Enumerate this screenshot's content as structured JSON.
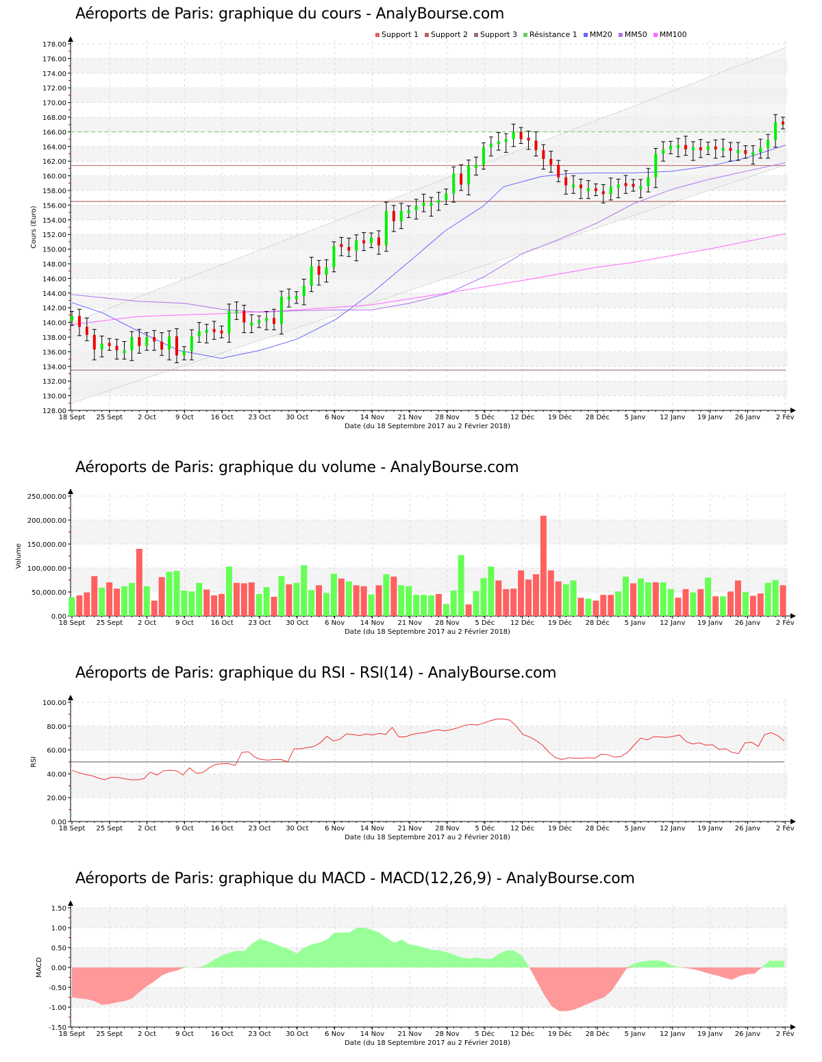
{
  "titles": {
    "price": "Aéroports de Paris: graphique du cours - AnalyBourse.com",
    "volume": "Aéroports de Paris: graphique du volume - AnalyBourse.com",
    "rsi": "Aéroports de Paris: graphique du RSI - RSI(14) - AnalyBourse.com",
    "macd": "Aéroports de Paris: graphique du MACD - MACD(12,26,9) - AnalyBourse.com"
  },
  "legend": [
    {
      "label": "Support 1",
      "color": "#e06060"
    },
    {
      "label": "Support 2",
      "color": "#c06060"
    },
    {
      "label": "Support 3",
      "color": "#a07070"
    },
    {
      "label": "Résistance 1",
      "color": "#60d060"
    },
    {
      "label": "MM20",
      "color": "#6666ff"
    },
    {
      "label": "MM50",
      "color": "#b070f0"
    },
    {
      "label": "MM100",
      "color": "#ff66ff"
    }
  ],
  "x_ticks": [
    "18 Sept",
    "25 Sept",
    "2 Oct",
    "9 Oct",
    "16 Oct",
    "23 Oct",
    "30 Oct",
    "6 Nov",
    "14 Nov",
    "21 Nov",
    "28 Nov",
    "5 Déc",
    "12 Déc",
    "19 Déc",
    "28 Déc",
    "5 Janv",
    "12 Janv",
    "19 Janv",
    "26 Janv",
    "2 Fév"
  ],
  "x_label": "Date (du 18 Septembre 2017 au 2 Février 2018)",
  "colors": {
    "up": "#00ee00",
    "down": "#ee0000",
    "vol_up": "#66ff55",
    "vol_down": "#ff6060",
    "macd_pos": "#99ff99",
    "macd_neg": "#ff9999",
    "rsi": "#ee3333"
  },
  "chart_data": [
    {
      "type": "candlestick",
      "title": "Aéroports de Paris: graphique du cours - AnalyBourse.com",
      "xlabel": "Date (du 18 Septembre 2017 au 2 Février 2018)",
      "ylabel": "Cours (Euro)",
      "ylim": [
        128,
        178
      ],
      "y_ticks": [
        "128.00",
        "130.00",
        "132.00",
        "134.00",
        "136.00",
        "138.00",
        "140.00",
        "142.00",
        "144.00",
        "146.00",
        "148.00",
        "150.00",
        "152.00",
        "154.00",
        "156.00",
        "158.00",
        "160.00",
        "162.00",
        "164.00",
        "166.00",
        "168.00",
        "170.00",
        "172.00",
        "174.00",
        "176.00",
        "178.00"
      ],
      "levels": {
        "support_1": 161.4,
        "support_2": 156.5,
        "support_3": 133.5,
        "resistance_1": 166.0
      },
      "ohlc": [
        [
          140,
          141.7,
          140,
          141
        ],
        [
          140.9,
          141.4,
          139.4,
          139.4
        ],
        [
          138.9,
          139.8,
          137.7,
          138.2
        ],
        [
          139.1,
          139.1,
          135.6,
          136.4
        ],
        [
          136.4,
          137.8,
          136.4,
          137.2
        ],
        [
          137,
          137.9,
          136.6,
          136.6
        ],
        [
          136.6,
          137.2,
          135.9,
          136.1
        ],
        [
          136.3,
          136.7,
          134.8,
          136.2
        ],
        [
          136.2,
          138,
          135.5,
          138
        ],
        [
          137.9,
          139,
          136.4,
          136.8
        ],
        [
          136.9,
          138.8,
          136.8,
          138
        ],
        [
          137.9,
          138.1,
          136.8,
          137.4
        ],
        [
          137.3,
          137.3,
          135.6,
          136.3
        ],
        [
          136.3,
          138.1,
          135.3,
          138.1
        ],
        [
          134.7,
          138.1,
          133.5,
          136.2
        ],
        [
          135.9,
          137,
          135.9,
          137
        ],
        [
          137.2,
          138.6,
          136.4,
          138.6
        ],
        [
          138.5,
          139,
          138.3,
          138.9
        ],
        [
          139,
          139.4,
          138.7,
          139.1
        ],
        [
          139.1,
          139.3,
          138.1,
          138.5
        ],
        [
          138.9,
          139.3,
          137.9,
          138.1
        ],
        [
          139.8,
          142,
          139.8,
          141.7
        ],
        [
          141.7,
          141.8,
          140.5,
          141.5
        ],
        [
          141.7,
          141.7,
          139.4,
          139.9
        ],
        [
          140.4,
          140.9,
          139.9,
          139.9
        ],
        [
          140.1,
          140.9,
          139.4,
          140.3
        ],
        [
          140.3,
          140.9,
          140.1,
          140.6
        ],
        [
          140.3,
          140.4,
          139.5,
          139.5
        ],
        [
          139.5,
          143.5,
          139.5,
          143.5
        ],
        [
          143.9,
          144.5,
          143.3,
          143.3
        ],
        [
          142.9,
          143.8,
          142.6,
          143.7
        ],
        [
          144.1,
          145,
          143.1,
          145
        ],
        [
          145.1,
          147.7,
          145.1,
          147.7
        ],
        [
          147.5,
          148.4,
          146.5,
          146.5
        ],
        [
          146.6,
          147.6,
          145.6,
          147.6
        ],
        [
          147,
          150.4,
          147,
          150.4
        ],
        [
          150.6,
          150.9,
          150.0,
          150.1
        ],
        [
          150.1,
          150.3,
          148.5,
          150.0
        ],
        [
          151.9,
          153.3,
          150.2,
          151.2
        ],
        [
          150.9,
          151.6,
          149.9,
          150.4
        ],
        [
          150.8,
          152,
          151.0,
          151.9
        ],
        [
          152.2,
          152.2,
          150.1,
          150.6
        ],
        [
          151.7,
          155.4,
          151.7,
          155.4
        ],
        [
          155.6,
          155.6,
          151.5,
          153.8
        ],
        [
          152.5,
          155.3,
          151.2,
          155.2
        ],
        [
          154.1,
          155.7,
          154.1,
          155.3
        ],
        [
          155.2,
          156.2,
          154.3,
          155.9
        ],
        [
          154.8,
          156.7,
          153.4,
          156.5
        ],
        [
          156.4,
          156.6,
          154.9,
          156.3
        ],
        [
          156.1,
          158.5,
          155.5,
          156.9
        ],
        [
          158.6,
          159.5,
          158.6,
          157.6
        ],
        [
          158.6,
          160.3,
          158.6,
          160.3
        ],
        [
          160.1,
          160.6,
          159.1,
          158.3
        ],
        [
          161.9,
          162.2,
          161.8,
          161.4
        ],
        [
          160.6,
          163.9,
          160.6,
          161.4
        ],
        [
          163,
          163.9,
          161.6,
          163.9
        ],
        [
          164.4,
          165.1,
          163.7,
          164.4
        ],
        [
          165.2,
          165.2,
          163.1,
          164.6
        ],
        [
          164.9,
          165.5,
          163.9,
          164.9
        ],
        [
          165.2,
          166,
          162.8,
          166
        ]
      ],
      "note": "ohlc is [open, high, low, close] estimated per trading session; last values approximate the visible candles"
    },
    {
      "type": "bar",
      "title": "Aéroports de Paris: graphique du volume - AnalyBourse.com",
      "ylabel": "Volume",
      "ylim": [
        0,
        250000
      ],
      "y_ticks": [
        "0.00",
        "50,000.00",
        "100,000.00",
        "150,000.00",
        "200,000.00",
        "250,000.00"
      ],
      "values": [
        39000,
        43000,
        49000,
        83000,
        59000,
        70000,
        57000,
        62000,
        69000,
        140000,
        62000,
        32000,
        81000,
        92000,
        94000,
        53000,
        51000,
        69000,
        55000,
        43000,
        46000,
        103000,
        69000,
        68000,
        70000,
        46000,
        60000,
        40000,
        83000,
        66000,
        69000,
        106000,
        54000,
        64000,
        48000,
        88000,
        78000,
        72000,
        64000,
        62000,
        45000,
        64000,
        87000,
        82000,
        64000,
        62000,
        44000,
        44000,
        43000,
        46000,
        25000,
        53000,
        127000,
        24000,
        52000,
        79000,
        103000,
        74000,
        56000,
        57000,
        95000,
        76000,
        87000,
        209000,
        95000,
        72000,
        66000,
        74000,
        38000,
        36000,
        32000,
        44000,
        44000,
        51000,
        82000,
        68000,
        78000,
        70000,
        70000,
        70000,
        56000,
        38000,
        56000,
        49000,
        56000,
        80000,
        41000,
        41000,
        51000,
        74000,
        50000,
        42000,
        47000,
        69000,
        75000,
        64000
      ],
      "up": [
        1,
        0,
        0,
        0,
        1,
        0,
        0,
        1,
        1,
        0,
        1,
        0,
        0,
        1,
        1,
        1,
        1,
        1,
        0,
        0,
        0,
        1,
        0,
        0,
        0,
        1,
        1,
        0,
        1,
        0,
        1,
        1,
        1,
        0,
        1,
        1,
        0,
        1,
        0,
        0,
        1,
        0,
        1,
        0,
        1,
        1,
        1,
        1,
        1,
        0,
        1,
        1,
        1,
        0,
        1,
        1,
        1,
        0,
        0,
        0,
        0,
        0,
        0,
        0,
        0,
        0,
        1,
        1,
        0,
        1,
        0,
        0,
        0,
        1,
        1,
        0,
        1,
        1,
        0,
        1,
        1,
        0,
        0,
        1,
        0,
        1,
        0,
        1,
        0,
        0,
        1,
        0,
        0,
        1,
        1,
        0
      ]
    },
    {
      "type": "line",
      "title": "Aéroports de Paris: graphique du RSI - RSI(14) - AnalyBourse.com",
      "ylabel": "RSI",
      "ylim": [
        0,
        100
      ],
      "y_ticks": [
        "0.00",
        "20.00",
        "40.00",
        "60.00",
        "80.00",
        "100.00"
      ],
      "reference_line": 50,
      "values": [
        43,
        41,
        39.5,
        38.5,
        36.5,
        35,
        37,
        37,
        36,
        35,
        35,
        36,
        41.5,
        39,
        42.5,
        43,
        42.5,
        39,
        45,
        40.5,
        41,
        45,
        48,
        48.5,
        48.5,
        47,
        58,
        58.5,
        54,
        52,
        51.5,
        52,
        52,
        50,
        61,
        61,
        62,
        63,
        66,
        71.5,
        67.5,
        69,
        73.5,
        73,
        72,
        73.5,
        72.5,
        74,
        73,
        79,
        71,
        71,
        73,
        74,
        74.5,
        76,
        77,
        76,
        77,
        78.5,
        80.5,
        81.5,
        81,
        82.5,
        84.5,
        86,
        86,
        85,
        80,
        73,
        71,
        68,
        64,
        58,
        53.5,
        52,
        53.5,
        53,
        53,
        53.5,
        53,
        56.5,
        56,
        54,
        54.5,
        58,
        64,
        70,
        68.5,
        71,
        71,
        70.5,
        71.5,
        72.5,
        67,
        65,
        66,
        64,
        64.5,
        60.5,
        61,
        58,
        57,
        66,
        66.5,
        63,
        73,
        74.5,
        72,
        67.5
      ]
    },
    {
      "type": "area",
      "title": "Aéroports de Paris: graphique du MACD - MACD(12,26,9) - AnalyBourse.com",
      "ylabel": "MACD",
      "ylim": [
        -1.5,
        1.5
      ],
      "y_ticks": [
        "-1.50",
        "-1.00",
        "-0.50",
        "0.00",
        "0.50",
        "1.00",
        "1.50"
      ],
      "values": [
        -0.75,
        -0.78,
        -0.8,
        -0.85,
        -0.94,
        -0.92,
        -0.88,
        -0.85,
        -0.78,
        -0.62,
        -0.47,
        -0.35,
        -0.2,
        -0.12,
        -0.08,
        0.02,
        0.0,
        -0.01,
        0.08,
        0.2,
        0.3,
        0.37,
        0.42,
        0.41,
        0.6,
        0.72,
        0.67,
        0.6,
        0.52,
        0.45,
        0.35,
        0.5,
        0.58,
        0.62,
        0.7,
        0.87,
        0.88,
        0.88,
        1.0,
        1.0,
        0.95,
        0.88,
        0.74,
        0.62,
        0.7,
        0.58,
        0.55,
        0.5,
        0.44,
        0.43,
        0.38,
        0.32,
        0.25,
        0.22,
        0.25,
        0.22,
        0.22,
        0.35,
        0.43,
        0.42,
        0.3,
        0.0,
        -0.35,
        -0.7,
        -0.98,
        -1.1,
        -1.1,
        -1.06,
        -0.98,
        -0.9,
        -0.82,
        -0.75,
        -0.58,
        -0.3,
        -0.02,
        0.1,
        0.15,
        0.17,
        0.18,
        0.15,
        0.05,
        0.01,
        -0.02,
        -0.05,
        -0.1,
        -0.16,
        -0.2,
        -0.26,
        -0.31,
        -0.22,
        -0.17,
        -0.16,
        0.0,
        0.17,
        0.17,
        0.17
      ]
    }
  ]
}
